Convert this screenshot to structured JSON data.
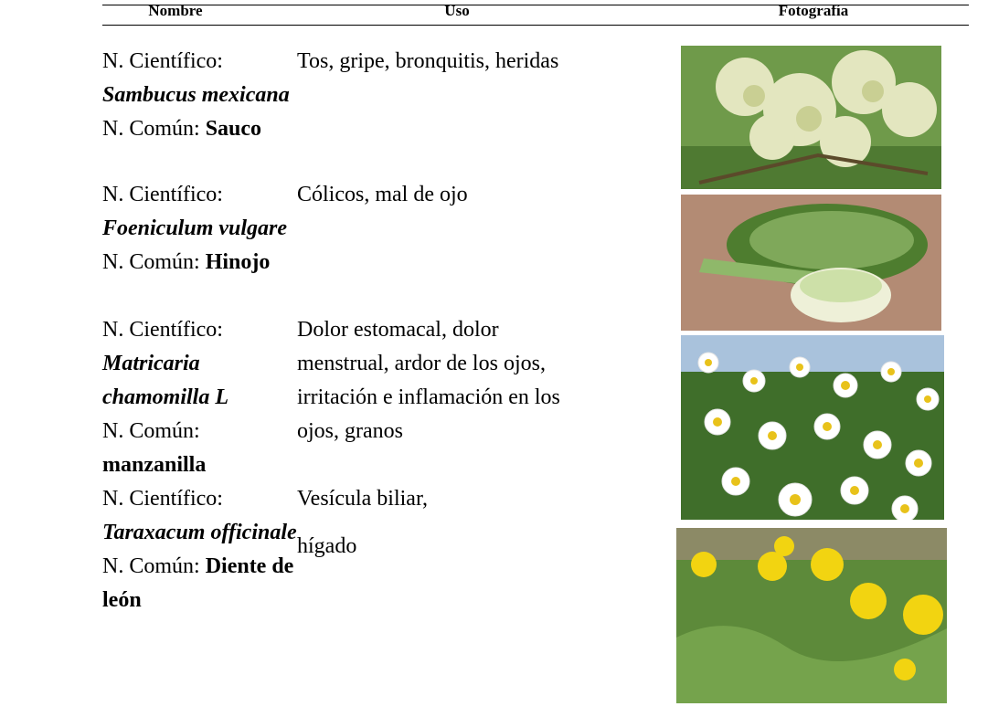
{
  "table": {
    "headers": [
      "Nombre",
      "Uso",
      "Fotografía"
    ],
    "rows": [
      {
        "sci_label": "N. Científico:",
        "sci_name": "Sambucus mexicana",
        "common_label": "N. Común:",
        "common_name": "Sauco",
        "uso": [
          "Tos, gripe, bronquitis, heridas"
        ]
      },
      {
        "sci_label": "N. Científico:",
        "sci_name": "Foeniculum vulgare",
        "common_label": "N. Común:",
        "common_name": "Hinojo",
        "uso": [
          "Cólicos, mal de ojo"
        ]
      },
      {
        "sci_label": "N. Científico:",
        "sci_name": "Matricaria chamomilla L",
        "common_label": "N. Común:",
        "common_name": "manzanilla",
        "uso": [
          "Dolor estomacal, dolor menstrual, ardor de los ojos, irritación e inflamación en los ojos, granos"
        ]
      },
      {
        "sci_label": "N. Científico:",
        "sci_name": "Taraxacum officinale",
        "common_label": "N. Común:",
        "common_name": "Diente de león",
        "uso": [
          "Vesícula biliar,",
          "hígado"
        ]
      }
    ]
  }
}
